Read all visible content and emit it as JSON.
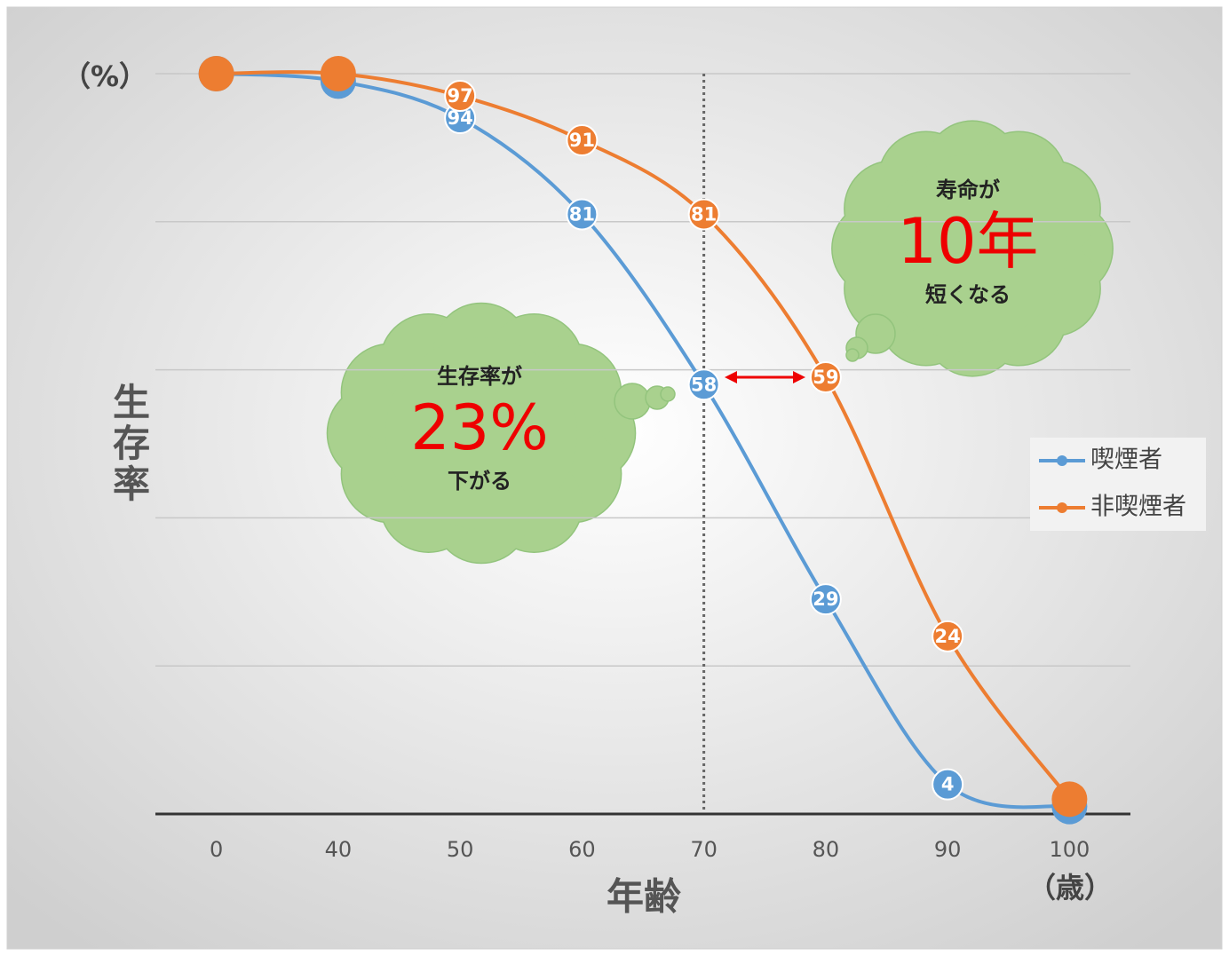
{
  "chart_data": {
    "type": "line",
    "y_unit": "（%）",
    "y_label": "生存率",
    "x_label": "年齢",
    "x_unit": "（歳）",
    "categories": [
      "0",
      "40",
      "50",
      "60",
      "70",
      "80",
      "90",
      "100"
    ],
    "series": [
      {
        "name": "喫煙者",
        "color": "#5b9bd5",
        "values": [
          100,
          99,
          94,
          81,
          58,
          29,
          4,
          1
        ],
        "value_labels": [
          null,
          null,
          "94",
          "81",
          "58",
          "29",
          "4",
          null
        ]
      },
      {
        "name": "非喫煙者",
        "color": "#ed7d31",
        "values": [
          100,
          100,
          97,
          91,
          81,
          59,
          24,
          2
        ],
        "value_labels": [
          null,
          null,
          "97",
          "91",
          "81",
          "59",
          "24",
          null
        ]
      }
    ],
    "ylim": [
      0,
      100
    ],
    "yticks": [
      0,
      20,
      40,
      60,
      80,
      100
    ],
    "grid": true,
    "legend": "right",
    "annotations": [
      {
        "lines": [
          "生存率が",
          "23%",
          "下がる"
        ]
      },
      {
        "lines": [
          "寿命が",
          "10年",
          "短くなる"
        ]
      }
    ]
  }
}
